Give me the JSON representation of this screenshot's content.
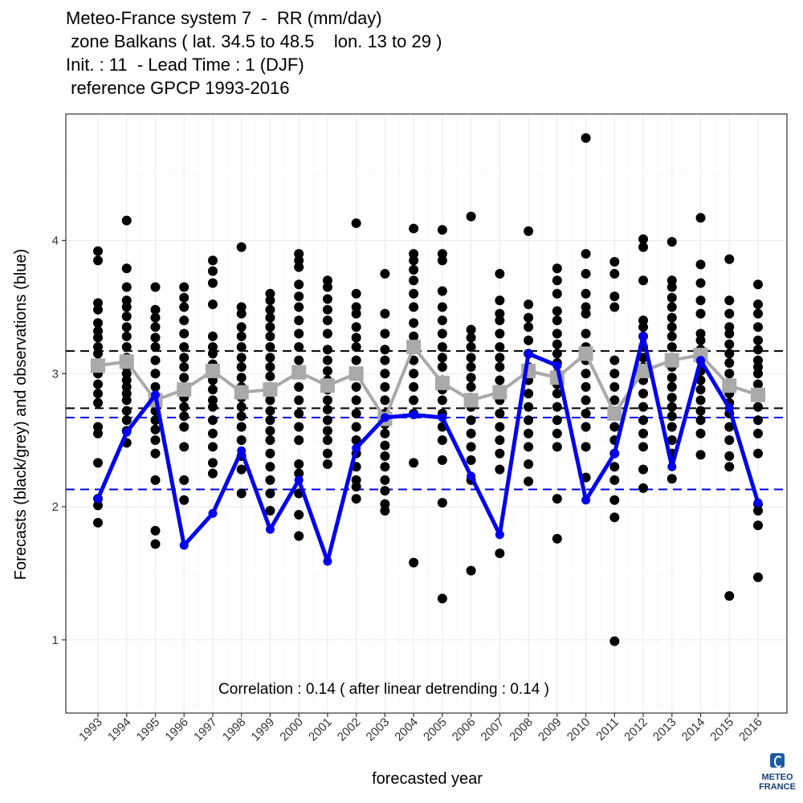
{
  "title_lines": [
    "Meteo-France system 7  -  RR (mm/day)",
    " zone Balkans ( lat. 34.5 to 48.5    lon. 13 to 29 )",
    "Init. : 11  - Lead Time : 1 (DJF)",
    " reference GPCP 1993-2016"
  ],
  "logo": {
    "line1": "METEO",
    "line2": "FRANCE"
  },
  "chart_data": {
    "type": "scatter",
    "xlabel": "forecasted year",
    "ylabel": "Forecasts (black/grey) and observations (blue)",
    "annotation": "Correlation : 0.14   ( after linear detrending : 0.14 )",
    "x": [
      "1993",
      "1994",
      "1995",
      "1996",
      "1997",
      "1998",
      "1999",
      "2000",
      "2001",
      "2002",
      "2003",
      "2004",
      "2005",
      "2006",
      "2007",
      "2008",
      "2009",
      "2010",
      "2011",
      "2012",
      "2013",
      "2014",
      "2015",
      "2016"
    ],
    "ylim": [
      0.45,
      4.95
    ],
    "yticks": [
      1,
      2,
      3,
      4
    ],
    "grid": true,
    "legend": "none",
    "colors": {
      "ensemble": "#000000",
      "ensemble_mean": "#a9a9a9",
      "observations": "#0000ee",
      "forecast_bounds": "#000000",
      "obs_bounds": "#0000ee"
    },
    "ensemble_members": [
      [
        1.88,
        2.01,
        2.06,
        2.33,
        2.55,
        2.6,
        2.78,
        2.85,
        2.92,
        3.0,
        3.08,
        3.15,
        3.2,
        3.27,
        3.32,
        3.38,
        3.48,
        3.53,
        3.85,
        3.92
      ],
      [
        2.48,
        2.57,
        2.65,
        2.72,
        2.8,
        2.85,
        2.9,
        2.95,
        3.0,
        3.05,
        3.12,
        3.2,
        3.28,
        3.35,
        3.43,
        3.5,
        3.55,
        3.65,
        3.79,
        4.15
      ],
      [
        1.72,
        1.82,
        2.2,
        2.4,
        2.5,
        2.58,
        2.65,
        2.72,
        2.8,
        2.9,
        3.0,
        3.1,
        3.2,
        3.27,
        3.35,
        3.42,
        3.48,
        3.65
      ],
      [
        2.05,
        2.2,
        2.45,
        2.6,
        2.68,
        2.75,
        2.82,
        2.9,
        2.97,
        3.05,
        3.12,
        3.2,
        3.3,
        3.4,
        3.5,
        3.57,
        3.65
      ],
      [
        2.25,
        2.33,
        2.45,
        2.55,
        2.65,
        2.75,
        2.8,
        2.88,
        2.95,
        3.0,
        3.07,
        3.15,
        3.2,
        3.28,
        3.52,
        3.68,
        3.77,
        3.85
      ],
      [
        2.1,
        2.28,
        2.38,
        2.5,
        2.6,
        2.68,
        2.75,
        2.82,
        2.9,
        2.97,
        3.05,
        3.12,
        3.2,
        3.28,
        3.35,
        3.45,
        3.5,
        3.95
      ],
      [
        1.97,
        2.1,
        2.2,
        2.3,
        2.4,
        2.5,
        2.57,
        2.65,
        2.72,
        2.8,
        2.9,
        2.98,
        3.05,
        3.12,
        3.2,
        3.28,
        3.35,
        3.42,
        3.48,
        3.55,
        3.6
      ],
      [
        1.78,
        1.94,
        2.1,
        2.25,
        2.32,
        2.5,
        2.6,
        2.7,
        2.8,
        2.9,
        3.0,
        3.1,
        3.2,
        3.3,
        3.4,
        3.5,
        3.58,
        3.67,
        3.8,
        3.85,
        3.9
      ],
      [
        2.32,
        2.4,
        2.5,
        2.57,
        2.65,
        2.73,
        2.8,
        2.88,
        2.95,
        3.02,
        3.1,
        3.18,
        3.3,
        3.4,
        3.48,
        3.56,
        3.65,
        3.7
      ],
      [
        2.06,
        2.15,
        2.2,
        2.3,
        2.4,
        2.5,
        2.6,
        2.7,
        2.8,
        2.9,
        3.0,
        3.1,
        3.2,
        3.27,
        3.35,
        3.45,
        3.5,
        3.6,
        4.13
      ],
      [
        1.97,
        2.02,
        2.12,
        2.2,
        2.3,
        2.38,
        2.46,
        2.55,
        2.62,
        2.7,
        2.8,
        2.9,
        3.0,
        3.1,
        3.18,
        3.3,
        3.45,
        3.75
      ],
      [
        1.58,
        2.33,
        2.7,
        2.8,
        2.9,
        3.0,
        3.1,
        3.2,
        3.28,
        3.38,
        3.5,
        3.6,
        3.7,
        3.78,
        3.85,
        3.9,
        4.09
      ],
      [
        1.31,
        2.03,
        2.35,
        2.5,
        2.6,
        2.7,
        2.8,
        2.88,
        2.95,
        3.05,
        3.12,
        3.2,
        3.3,
        3.4,
        3.5,
        3.62,
        3.85,
        3.9,
        4.08
      ],
      [
        1.52,
        2.2,
        2.35,
        2.45,
        2.55,
        2.65,
        2.75,
        2.82,
        2.9,
        2.97,
        3.05,
        3.12,
        3.2,
        3.27,
        3.33,
        4.18
      ],
      [
        1.65,
        2.28,
        2.4,
        2.5,
        2.6,
        2.7,
        2.8,
        2.88,
        2.95,
        3.05,
        3.12,
        3.2,
        3.3,
        3.4,
        3.45,
        3.55,
        3.75
      ],
      [
        2.19,
        2.32,
        2.45,
        2.55,
        2.65,
        2.75,
        2.85,
        2.95,
        3.05,
        3.15,
        3.25,
        3.35,
        3.42,
        3.52,
        4.07
      ],
      [
        1.76,
        2.06,
        2.45,
        2.55,
        2.65,
        2.75,
        2.85,
        2.92,
        3.0,
        3.08,
        3.15,
        3.22,
        3.3,
        3.4,
        3.47,
        3.6,
        3.7,
        3.79
      ],
      [
        2.22,
        2.45,
        2.6,
        2.7,
        2.8,
        2.9,
        3.0,
        3.1,
        3.2,
        3.3,
        3.45,
        3.5,
        3.6,
        3.75,
        3.9,
        4.77
      ],
      [
        0.99,
        1.92,
        2.05,
        2.2,
        2.3,
        2.4,
        2.5,
        2.6,
        2.7,
        2.8,
        2.9,
        3.0,
        3.1,
        3.5,
        3.58,
        3.75,
        3.84
      ],
      [
        2.14,
        2.28,
        2.45,
        2.55,
        2.65,
        2.75,
        2.85,
        2.95,
        3.05,
        3.12,
        3.2,
        3.28,
        3.35,
        3.4,
        3.7,
        3.95,
        4.01
      ],
      [
        2.21,
        2.4,
        2.5,
        2.6,
        2.68,
        2.75,
        2.82,
        2.9,
        2.97,
        3.05,
        3.12,
        3.2,
        3.28,
        3.35,
        3.42,
        3.5,
        3.57,
        3.65,
        3.7,
        3.99
      ],
      [
        2.39,
        2.55,
        2.65,
        2.72,
        2.8,
        2.88,
        2.95,
        3.02,
        3.1,
        3.18,
        3.25,
        3.3,
        3.45,
        3.55,
        3.68,
        3.82,
        4.17
      ],
      [
        1.33,
        2.3,
        2.38,
        2.5,
        2.6,
        2.7,
        2.78,
        2.85,
        2.92,
        3.0,
        3.08,
        3.15,
        3.22,
        3.3,
        3.35,
        3.45,
        3.55,
        3.86
      ],
      [
        1.47,
        1.86,
        1.97,
        2.02,
        2.4,
        2.55,
        2.65,
        2.75,
        2.85,
        2.92,
        3.0,
        3.05,
        3.1,
        3.18,
        3.25,
        3.35,
        3.45,
        3.52,
        3.67
      ]
    ],
    "ensemble_mean": [
      3.06,
      3.09,
      2.8,
      2.88,
      3.02,
      2.86,
      2.88,
      3.01,
      2.91,
      3.0,
      2.66,
      3.2,
      2.93,
      2.8,
      2.86,
      3.02,
      2.97,
      3.15,
      2.7,
      3.02,
      3.1,
      3.14,
      2.91,
      2.84
    ],
    "observations": [
      2.06,
      2.56,
      2.84,
      1.71,
      1.95,
      2.42,
      1.83,
      2.2,
      1.59,
      2.44,
      2.67,
      2.69,
      2.67,
      2.23,
      1.79,
      3.15,
      3.06,
      2.05,
      2.4,
      3.28,
      2.3,
      3.1,
      2.74,
      2.03
    ],
    "forecast_bounds": [
      2.74,
      3.17
    ],
    "obs_bounds": [
      2.13,
      2.67
    ]
  }
}
